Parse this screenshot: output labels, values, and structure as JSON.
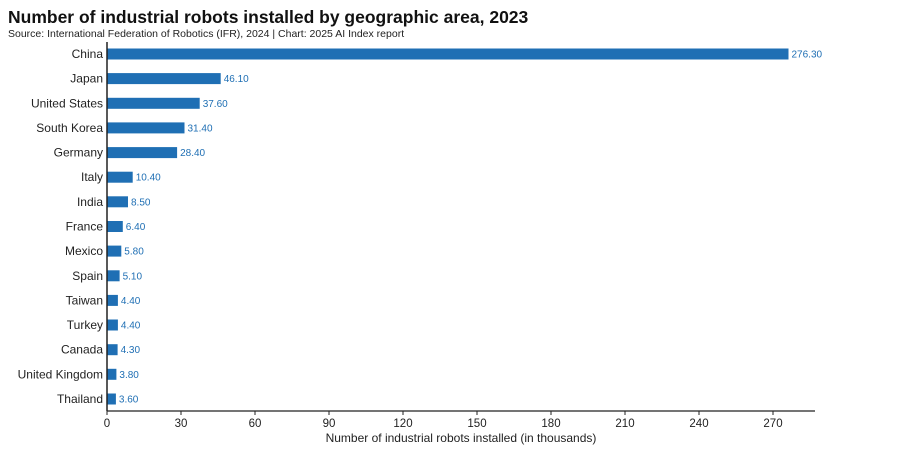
{
  "title": "Number of industrial robots installed by geographic area, 2023",
  "source": "Source: International Federation of Robotics (IFR), 2024 | Chart: 2025 AI Index report",
  "colors": {
    "bar": "#1f6fb4",
    "value_label": "#1f6fb4",
    "axis": "#222222"
  },
  "chart_data": {
    "type": "bar",
    "orientation": "horizontal",
    "title": "Number of industrial robots installed by geographic area, 2023",
    "xlabel": "Number of industrial robots installed (in thousands)",
    "ylabel": "",
    "xlim": [
      0,
      290
    ],
    "xticks": [
      0,
      30,
      60,
      90,
      120,
      150,
      180,
      210,
      240,
      270
    ],
    "grid": false,
    "categories": [
      "China",
      "Japan",
      "United States",
      "South Korea",
      "Germany",
      "Italy",
      "India",
      "France",
      "Mexico",
      "Spain",
      "Taiwan",
      "Turkey",
      "Canada",
      "United Kingdom",
      "Thailand"
    ],
    "values": [
      276.3,
      46.1,
      37.6,
      31.4,
      28.4,
      10.4,
      8.5,
      6.4,
      5.8,
      5.1,
      4.4,
      4.4,
      4.3,
      3.8,
      3.6
    ],
    "value_labels": [
      "276.30",
      "46.10",
      "37.60",
      "31.40",
      "28.40",
      "10.40",
      "8.50",
      "6.40",
      "5.80",
      "5.10",
      "4.40",
      "4.40",
      "4.30",
      "3.80",
      "3.60"
    ]
  }
}
